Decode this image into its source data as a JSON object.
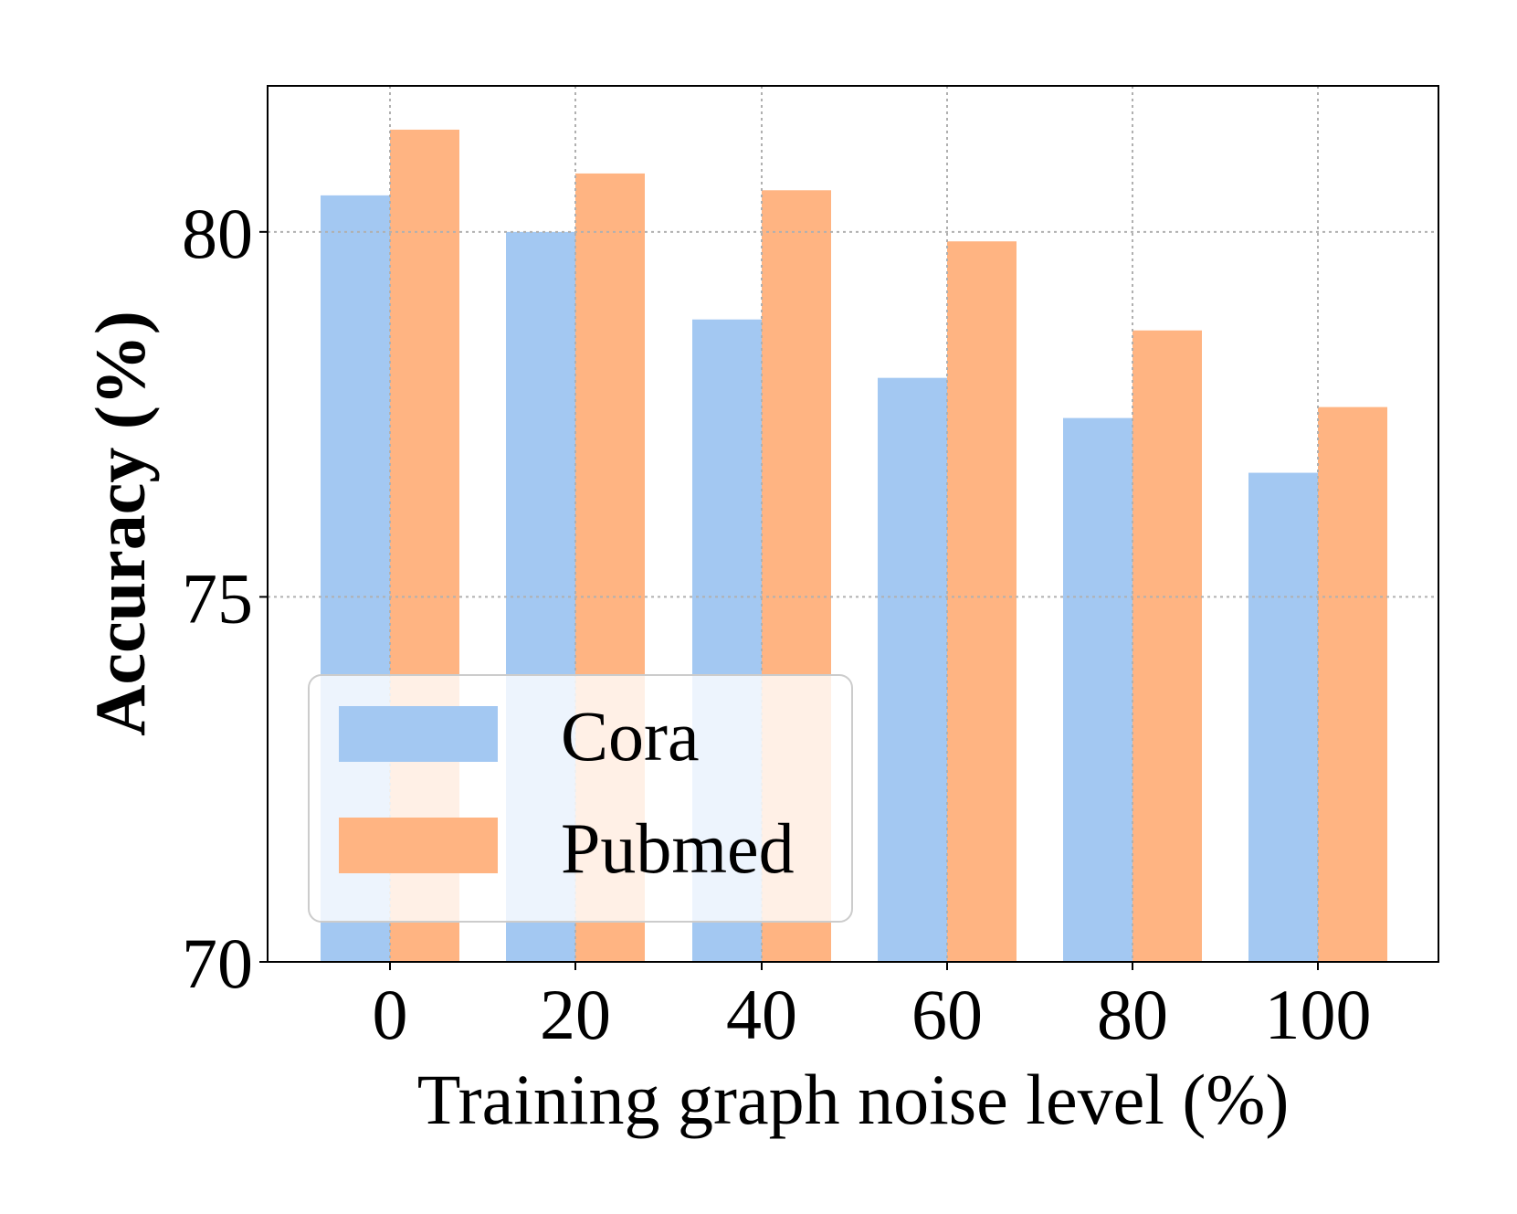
{
  "chart_data": {
    "type": "bar",
    "title": "",
    "xlabel": "Training graph noise level (%)",
    "ylabel": "Accuracy (%)",
    "categories": [
      "0",
      "20",
      "40",
      "60",
      "80",
      "100"
    ],
    "series": [
      {
        "name": "Cora",
        "color": "#a3c8f2",
        "values": [
          80.5,
          80.0,
          78.8,
          78.0,
          77.45,
          76.7
        ]
      },
      {
        "name": "Pubmed",
        "color": "#ffb482",
        "values": [
          81.4,
          80.8,
          80.57,
          79.87,
          78.65,
          77.6
        ]
      }
    ],
    "ylim": [
      70,
      82
    ],
    "yticks": [
      "70",
      "75",
      "80"
    ],
    "grid": true,
    "legend_position": "lower-left"
  }
}
